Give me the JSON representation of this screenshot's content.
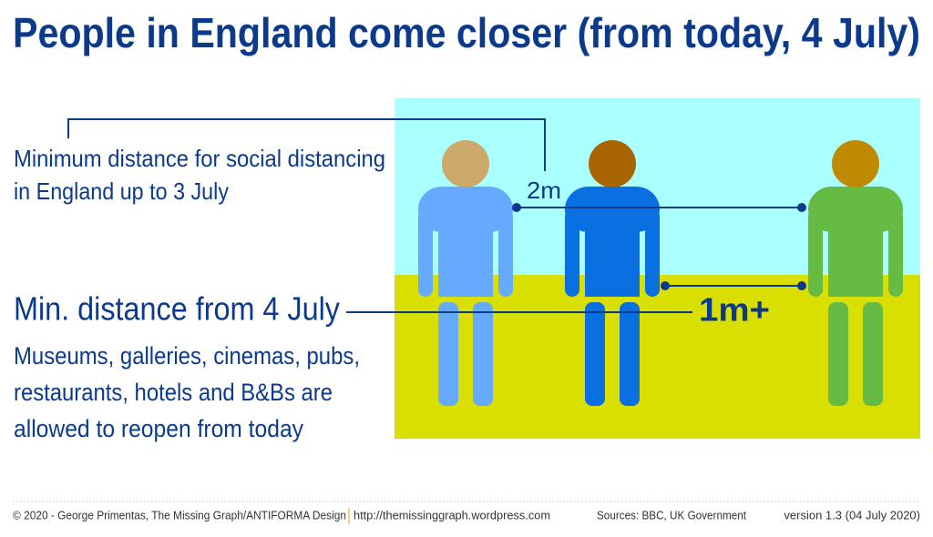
{
  "title": "People in England come closer (from today, 4 July)",
  "old_rule": {
    "lines": [
      "Minimum distance for social distancing",
      "in England up to 3 July"
    ],
    "distance": "2m"
  },
  "new_rule": {
    "heading": "Min. distance from 4 July",
    "distance": "1m+",
    "lines": [
      "Museums, galleries, cinemas, pubs,",
      "restaurants, hotels and B&Bs are",
      "allowed to reopen from today"
    ]
  },
  "footer": {
    "credit": "© 2020 - George Primentas, The Missing Graph/ANTIFORMA Design",
    "url": "http://themissinggraph.wordpress.com",
    "sources": "Sources:  BBC, UK Government",
    "version": "version 1.3 (04 July 2020)"
  }
}
